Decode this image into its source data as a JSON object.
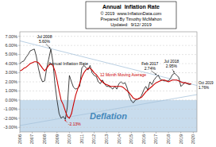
{
  "chart_data": {
    "type": "line",
    "title": "Annual  Inflation Rate",
    "subtitle": [
      "© 2019  www.InflationData.com",
      "Prepared By Timothy McMahon",
      "Updated:  9/12/ 2019"
    ],
    "x": [
      2006.0,
      2006.17,
      2006.33,
      2006.5,
      2006.67,
      2006.83,
      2007.0,
      2007.17,
      2007.33,
      2007.5,
      2007.67,
      2007.83,
      2008.0,
      2008.17,
      2008.33,
      2008.5,
      2008.67,
      2008.83,
      2009.0,
      2009.17,
      2009.33,
      2009.5,
      2009.67,
      2009.83,
      2010.0,
      2010.17,
      2010.33,
      2010.5,
      2010.67,
      2010.83,
      2011.0,
      2011.17,
      2011.33,
      2011.5,
      2011.67,
      2011.83,
      2012.0,
      2012.17,
      2012.33,
      2012.5,
      2012.67,
      2012.83,
      2013.0,
      2013.17,
      2013.33,
      2013.5,
      2013.67,
      2013.83,
      2014.0,
      2014.17,
      2014.33,
      2014.5,
      2014.67,
      2014.83,
      2015.0,
      2015.17,
      2015.33,
      2015.5,
      2015.67,
      2015.83,
      2016.0,
      2016.17,
      2016.33,
      2016.5,
      2016.67,
      2016.83,
      2017.0,
      2017.17,
      2017.33,
      2017.5,
      2017.67,
      2017.83,
      2018.0,
      2018.17,
      2018.33,
      2018.5,
      2018.67,
      2018.83,
      2019.0,
      2019.17,
      2019.33,
      2019.5,
      2019.67,
      2019.83
    ],
    "series": [
      {
        "name": "Annual Inflation Rate",
        "color": "#111111",
        "values": [
          4.0,
          4.2,
          4.3,
          4.7,
          5.0,
          5.4,
          5.5,
          5.6,
          4.8,
          3.5,
          2.5,
          2.0,
          2.1,
          3.5,
          4.5,
          5.6,
          4.2,
          1.8,
          0.0,
          -1.5,
          -2.0,
          -1.8,
          -2.13,
          -0.8,
          2.7,
          2.0,
          1.4,
          1.2,
          1.3,
          1.5,
          3.5,
          3.8,
          3.6,
          3.3,
          3.8,
          3.0,
          2.7,
          2.6,
          2.0,
          1.8,
          2.2,
          1.8,
          1.5,
          1.5,
          1.4,
          1.2,
          1.5,
          1.2,
          1.8,
          2.0,
          1.8,
          1.9,
          1.3,
          0.5,
          -0.1,
          -0.3,
          0.0,
          0.1,
          0.2,
          0.5,
          1.1,
          1.5,
          1.1,
          2.0,
          1.7,
          2.2,
          2.5,
          2.74,
          2.3,
          2.2,
          2.1,
          2.1,
          2.1,
          2.4,
          2.8,
          2.95,
          2.7,
          2.5,
          1.5,
          1.7,
          1.9,
          1.8,
          1.7,
          1.76
        ]
      },
      {
        "name": "12 Month Moving Average",
        "color": "#cc0000",
        "values": [
          3.2,
          3.3,
          3.5,
          3.6,
          3.8,
          4.0,
          4.1,
          4.2,
          4.2,
          4.1,
          3.8,
          3.5,
          3.2,
          3.5,
          3.8,
          4.0,
          3.8,
          3.2,
          2.2,
          1.0,
          0.0,
          -0.5,
          -1.2,
          -1.8,
          -2.0,
          -1.5,
          -0.5,
          0.5,
          1.2,
          1.8,
          2.5,
          3.0,
          3.3,
          3.5,
          3.5,
          3.3,
          3.0,
          2.8,
          2.5,
          2.2,
          2.0,
          1.8,
          1.7,
          1.6,
          1.5,
          1.5,
          1.5,
          1.5,
          1.5,
          1.5,
          1.4,
          1.2,
          1.0,
          0.8,
          0.5,
          0.2,
          0.1,
          0.1,
          0.2,
          0.3,
          0.6,
          0.9,
          1.1,
          1.3,
          1.5,
          1.7,
          1.9,
          2.0,
          2.1,
          2.2,
          2.2,
          2.1,
          2.0,
          2.1,
          2.2,
          2.2,
          2.2,
          2.1,
          2.0,
          1.9,
          1.9,
          1.85,
          1.8,
          1.76
        ]
      }
    ],
    "trend_lines": [
      {
        "x": [
          2006.0,
          2020.3
        ],
        "values": [
          6.5,
          1.6
        ],
        "color": "#a8c4dc"
      },
      {
        "x": [
          2006.0,
          2020.3
        ],
        "values": [
          -2.8,
          0.6
        ],
        "color": "#a8c4dc"
      }
    ],
    "annotations": [
      {
        "text": "Jul 2008\n5.60%",
        "x": 2008.5,
        "y": 5.6
      },
      {
        "text": "-2.13%",
        "x": 2009.58,
        "y": -2.13,
        "color": "#cc0000"
      },
      {
        "text": "Feb 2017\n2.74%",
        "x": 2017.08,
        "y": 2.74
      },
      {
        "text": "Jul 2018\n2.95%",
        "x": 2018.5,
        "y": 2.95
      },
      {
        "text": "Oct 2019\n1.76%",
        "x": 2019.83,
        "y": 1.76
      },
      {
        "text": "Deflation",
        "y0": -3.5,
        "y1": 0.0,
        "color": "#c8dced"
      }
    ],
    "xlim": [
      2006.0,
      2020.3
    ],
    "xticks": [
      2006,
      2007,
      2008,
      2009,
      2010,
      2011,
      2012,
      2013,
      2014,
      2015,
      2016,
      2017,
      2018,
      2019,
      2020
    ],
    "ylim": [
      -3.5,
      7.5
    ],
    "yticks": [
      {
        "value": -3.0,
        "label": "-3.00%"
      },
      {
        "value": -2.0,
        "label": "-2.00%"
      },
      {
        "value": -1.0,
        "label": "-1.00%"
      },
      {
        "value": 0.0,
        "label": "0.00%"
      },
      {
        "value": 1.0,
        "label": "1.00%"
      },
      {
        "value": 2.0,
        "label": "2.00%"
      },
      {
        "value": 3.0,
        "label": "3.00%"
      },
      {
        "value": 4.0,
        "label": "4.00%"
      },
      {
        "value": 5.0,
        "label": "5.00%"
      },
      {
        "value": 6.0,
        "label": "6.00%"
      },
      {
        "value": 7.0,
        "label": "7.00%"
      }
    ],
    "grid": true
  }
}
